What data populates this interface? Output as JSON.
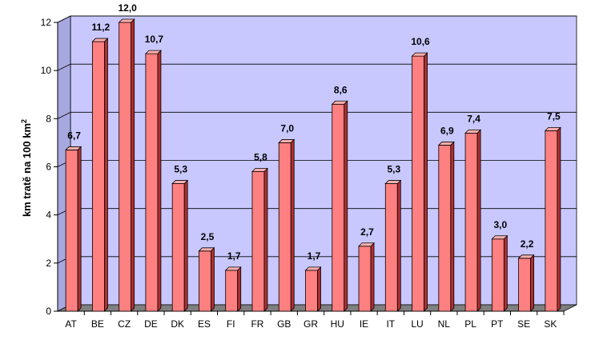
{
  "chart_data": {
    "type": "bar",
    "ylabel": "km tratě na 100 km",
    "ylabel_superscript": "2",
    "ylim": [
      0,
      12
    ],
    "yticks": [
      0,
      2,
      4,
      6,
      8,
      10,
      12
    ],
    "grid": true,
    "categories": [
      "AT",
      "BE",
      "CZ",
      "DE",
      "DK",
      "ES",
      "FI",
      "FR",
      "GB",
      "GR",
      "HU",
      "IE",
      "IT",
      "LU",
      "NL",
      "PL",
      "PT",
      "SE",
      "SK"
    ],
    "values": [
      6.7,
      11.2,
      12.0,
      10.7,
      5.3,
      2.5,
      1.7,
      5.8,
      7.0,
      1.7,
      8.6,
      2.7,
      5.3,
      10.6,
      6.9,
      7.4,
      3.0,
      2.2,
      7.5
    ],
    "value_labels": [
      "6,7",
      "11,2",
      "12,0",
      "10,7",
      "5,3",
      "2,5",
      "1,7",
      "5,8",
      "7,0",
      "1,7",
      "8,6",
      "2,7",
      "5,3",
      "10,6",
      "6,9",
      "7,4",
      "3,0",
      "2,2",
      "7,5"
    ],
    "colors": {
      "bar_front": "#ff8080",
      "bar_side": "#b03030",
      "bar_top": "#ffb0b0",
      "wall": "#c8c8ff",
      "floor": "#808080",
      "gridline": "#000000"
    }
  }
}
